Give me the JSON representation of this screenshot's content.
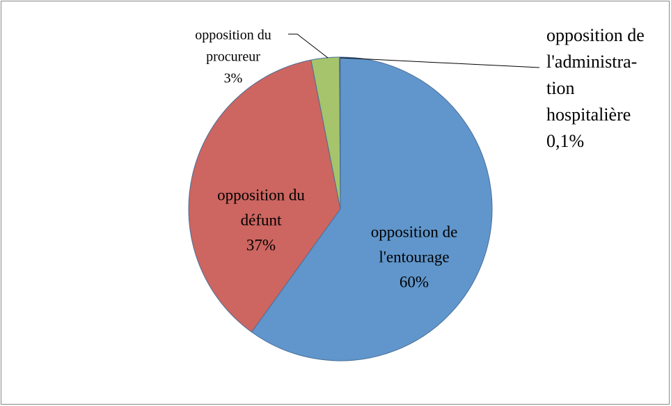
{
  "chart_data": {
    "type": "pie",
    "categories": [
      [
        "opposition de",
        "l'entourage"
      ],
      [
        "opposition du",
        "défunt"
      ],
      [
        "opposition du",
        "procureur"
      ],
      [
        "opposition de",
        "l'administra-",
        "tion",
        "hospitalière"
      ]
    ],
    "values": [
      60,
      37,
      3,
      0.1
    ],
    "value_labels": [
      "60%",
      "37%",
      "3%",
      "0,1%"
    ],
    "colors": [
      "#6096cb",
      "#cd6560",
      "#a5c46b",
      "#8064a2"
    ]
  }
}
